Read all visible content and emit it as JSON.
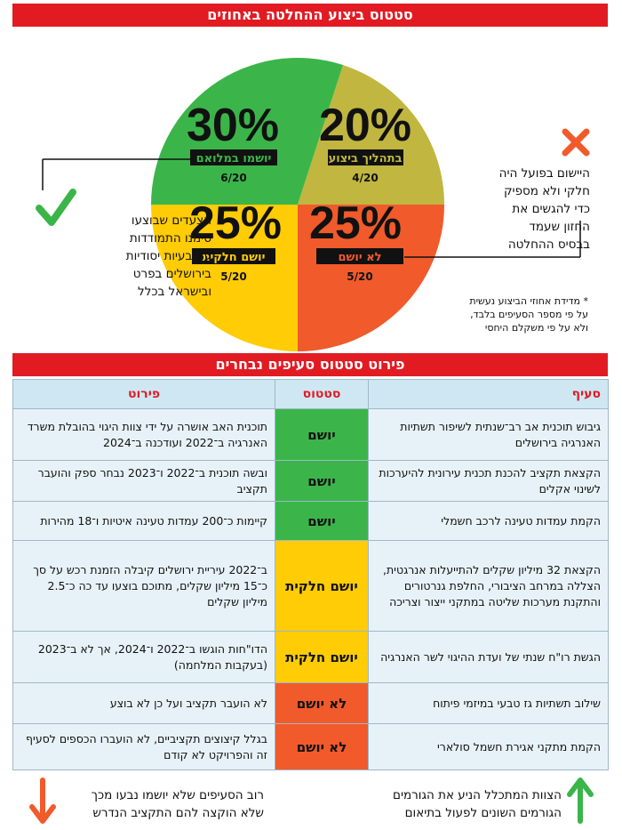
{
  "header": {
    "title": "סטטוס ביצוע ההחלטה באחוזים"
  },
  "chart_data": {
    "type": "pie",
    "title": "סטטוס ביצוע ההחלטה באחוזים",
    "slices": [
      {
        "label": "יושמו במלואם",
        "percent": "30%",
        "value": 30,
        "count": "6/20",
        "color": "#3bb54a"
      },
      {
        "label": "בתהליך ביצוע",
        "percent": "20%",
        "value": 20,
        "count": "4/20",
        "color": "#c1b63f"
      },
      {
        "label": "לא יושם",
        "percent": "25%",
        "value": 25,
        "count": "5/20",
        "color": "#f15a2b"
      },
      {
        "label": "יושם חלקית",
        "percent": "25%",
        "value": 25,
        "count": "5/20",
        "color": "#ffcc06"
      }
    ]
  },
  "notes": {
    "left": [
      "הצעדים שבוצעו",
      "סימנו התמודדות",
      "עם בעיות יסודיות",
      "בירושלים בפרט",
      "ובישראל בכלל"
    ],
    "right": [
      "היישום בפועל היה",
      "חלקי ולא מספיק",
      "כדי להגשים את",
      "החזון שעמד",
      "בבסיס ההחלטה"
    ],
    "footnote": [
      "* מדידת אחוזי הביצוע נעשית",
      "על פי מספר הסעיפים בלבד,",
      "ולא על פי משקלם היחסי"
    ]
  },
  "table": {
    "title": "פירוט סטטוס סעיפים נבחרים",
    "headers": {
      "section": "סעיף",
      "status": "סטטוס",
      "details": "פירוט"
    },
    "rows": [
      {
        "section": "גיבוש תוכנית אב רב־שנתית לשיפור תשתיות האנרגיה בירושלים",
        "status": "יושם",
        "details": "תוכנית האב אושרה על ידי צוות היגוי בהובלת משרד האנרגיה ב־2022 ועודכנה ב־2024",
        "tone": "green"
      },
      {
        "section": "הקצאת תקציב להכנת תכנית עירונית להיערכות לשינוי אקלים",
        "status": "יושם",
        "details": "ובשה תוכנית ב־2022 ו־2023 נבחר ספק והועבר תקציב",
        "tone": "green"
      },
      {
        "section": "הקמת עמדות טעינה לרכב חשמלי",
        "status": "יושם",
        "details": "קיימות כ־200 עמדות טעינה איטיות ו־18 מהירות",
        "tone": "green"
      },
      {
        "section": "הקצאת 32 מיליון שקלים להתייעלות אנרגטית, הצללה במרחב הציבורי, החלפת גנרטורים והתקנת מערכות שליטה במתקני ייצור וצריכה",
        "status": "יושם חלקית",
        "details": "ב־2022 עיריית ירושלים קיבלה הזמנת רכש על סך כ־15 מיליון שקלים, מתוכם בוצעו עד כה כ־2.5 מיליון שקלים",
        "tone": "yellow"
      },
      {
        "section": "הגשת רו\"ח שנתי של ועדת ההיגוי לשר האנרגיה",
        "status": "יושם חלקית",
        "details": "הדו\"חות הוגשו ב־2022 ו־2024, אך לא ב־2023 (בעקבות המלחמה)",
        "tone": "yellow"
      },
      {
        "section": "שילוב תשתיות גז טבעי במיזמי פיתוח",
        "status": "לא יושם",
        "details": "לא הועבר תקציב ועל כן לא בוצע",
        "tone": "red"
      },
      {
        "section": "הקמת מתקני אגירת חשמל סולארי",
        "status": "לא יושם",
        "details": "בגלל קיצוצים תקציביים, לא הועברו הכספים לסעיף זה והפרויקט לא קודם",
        "tone": "red"
      }
    ]
  },
  "footer": {
    "right": [
      "הצוות המתכלל הניע את הגורמים",
      "הגורמים השונים לפעול בתיאום"
    ],
    "left": [
      "רוב הסעיפים שלא יושמו נבעו מכך",
      "שלא הוקצה להם התקציב הנדרש"
    ]
  },
  "icons": {
    "check": "check-icon",
    "cross": "cross-icon",
    "up": "arrow-up-icon",
    "down": "arrow-down-icon"
  }
}
